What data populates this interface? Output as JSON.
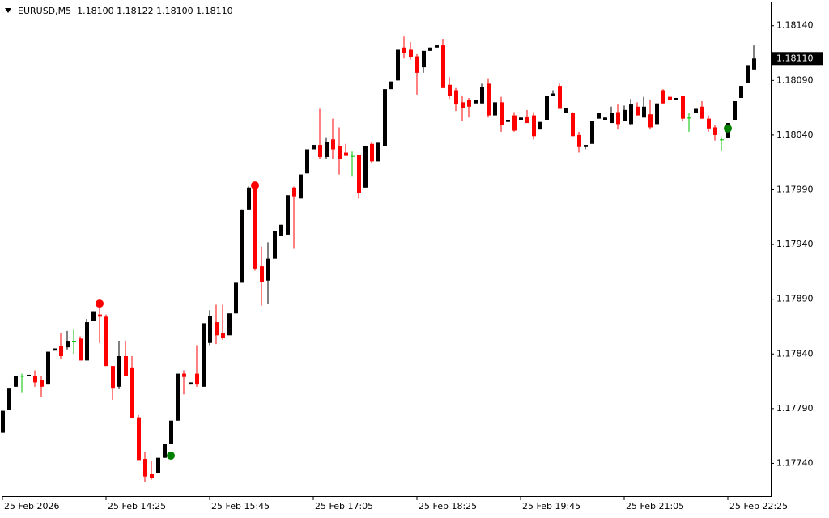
{
  "chart_data": {
    "type": "candlestick",
    "title": "EURUSD,M5  1.18100 1.18122 1.18100 1.18110",
    "categories": [
      "25 Feb 2026",
      null,
      null,
      null,
      null,
      null,
      null,
      null,
      null,
      null,
      null,
      null,
      null,
      null,
      null,
      null,
      "25 Feb 14:25",
      null,
      null,
      null,
      null,
      null,
      null,
      null,
      null,
      null,
      null,
      null,
      null,
      null,
      null,
      null,
      "25 Feb 15:45",
      null,
      null,
      null,
      null,
      null,
      null,
      null,
      null,
      null,
      null,
      null,
      null,
      null,
      null,
      null,
      "25 Feb 17:05",
      null,
      null,
      null,
      null,
      null,
      null,
      null,
      null,
      null,
      null,
      null,
      null,
      null,
      null,
      null,
      "25 Feb 18:25",
      null,
      null,
      null,
      null,
      null,
      null,
      null,
      null,
      null,
      null,
      null,
      null,
      null,
      null,
      null,
      "25 Feb 19:45",
      null,
      null,
      null,
      null,
      null,
      null,
      null,
      null,
      null,
      null,
      null,
      null,
      null,
      null,
      null,
      "25 Feb 21:05",
      null,
      null,
      null,
      null,
      null,
      null,
      null,
      null,
      null,
      null,
      null,
      null,
      null,
      null,
      null,
      "25 Feb 22:25",
      null,
      null,
      null,
      null
    ],
    "open": [
      1.17768,
      1.17789,
      1.1781,
      1.1782,
      1.1782,
      1.1782,
      1.17816,
      1.17812,
      1.17843,
      1.17847,
      1.17846,
      1.17852,
      1.17854,
      1.17834,
      1.1787,
      1.17876,
      1.17874,
      1.17829,
      1.1781,
      1.17838,
      1.17827,
      1.17782,
      1.17744,
      1.1773,
      1.17731,
      1.17745,
      1.17758,
      1.17779,
      1.17822,
      1.17812,
      1.17822,
      1.1781,
      1.1785,
      1.17869,
      1.17859,
      1.17857,
      1.17877,
      1.17905,
      1.17972,
      1.17992,
      1.1792,
      1.17907,
      1.17927,
      1.17948,
      1.17949,
      1.17992,
      1.17982,
      1.18005,
      1.18027,
      1.18031,
      1.1802,
      1.18036,
      1.1803,
      1.18024,
      1.18021,
      1.18022,
      1.17992,
      1.18032,
      1.18016,
      1.1803,
      1.18082,
      1.1809,
      1.1812,
      1.18118,
      1.18112,
      1.18102,
      1.18117,
      1.1812,
      1.18122,
      1.18086,
      1.18081,
      1.1807,
      1.18072,
      1.18069,
      1.18069,
      1.18087,
      1.18058,
      1.1807,
      1.18052,
      1.18058,
      1.18054,
      1.18057,
      1.18058,
      1.18045,
      1.18054,
      1.18076,
      1.18085,
      1.1806,
      1.1806,
      1.1804,
      1.18029,
      1.18032,
      1.18055,
      1.18054,
      1.18051,
      1.18061,
      1.18053,
      1.1805,
      1.18066,
      1.18056,
      1.18059,
      1.1805,
      1.18081,
      1.18075,
      1.18072,
      1.18076,
      1.18056,
      1.1806,
      1.18066,
      1.18055,
      1.18047,
      1.18036,
      1.18037,
      1.18054,
      1.18074,
      1.18088,
      1.181
    ],
    "high": [
      1.17788,
      1.17809,
      1.1782,
      1.17822,
      1.17821,
      1.17825,
      1.1782,
      1.17842,
      1.17845,
      1.17859,
      1.17861,
      1.17862,
      1.17856,
      1.17872,
      1.17879,
      1.17883,
      1.17876,
      1.17829,
      1.17852,
      1.17852,
      1.17838,
      1.17784,
      1.1775,
      1.17742,
      1.17745,
      1.17758,
      1.17779,
      1.17822,
      1.17825,
      1.17814,
      1.17848,
      1.17868,
      1.1788,
      1.17885,
      1.17885,
      1.17877,
      1.17905,
      1.17972,
      1.17993,
      1.17995,
      1.17938,
      1.17942,
      1.17952,
      1.17958,
      1.17985,
      1.17993,
      1.18004,
      1.18027,
      1.18031,
      1.18064,
      1.18038,
      1.18055,
      1.18047,
      1.18032,
      1.18025,
      1.18022,
      1.1803,
      1.18034,
      1.18033,
      1.18082,
      1.18089,
      1.18118,
      1.1813,
      1.18125,
      1.18114,
      1.18117,
      1.1812,
      1.18122,
      1.18128,
      1.18093,
      1.18083,
      1.18076,
      1.18074,
      1.18072,
      1.18087,
      1.18092,
      1.1807,
      1.18075,
      1.18054,
      1.18061,
      1.18056,
      1.18063,
      1.18061,
      1.18052,
      1.18076,
      1.18081,
      1.18087,
      1.18065,
      1.18061,
      1.18043,
      1.18031,
      1.18053,
      1.1806,
      1.18056,
      1.18066,
      1.18068,
      1.18067,
      1.18073,
      1.1807,
      1.18075,
      1.18072,
      1.18069,
      1.18082,
      1.18075,
      1.18074,
      1.18076,
      1.1806,
      1.18064,
      1.18071,
      1.18058,
      1.18049,
      1.18038,
      1.18051,
      1.18071,
      1.18085,
      1.18104,
      1.18122
    ],
    "low": [
      1.17768,
      1.17789,
      1.1781,
      1.17805,
      1.1782,
      1.1781,
      1.17801,
      1.17812,
      1.17843,
      1.17835,
      1.17844,
      1.1784,
      1.17834,
      1.17834,
      1.1787,
      1.1785,
      1.17829,
      1.17798,
      1.17808,
      1.1782,
      1.17781,
      1.17743,
      1.17723,
      1.17725,
      1.17731,
      1.17745,
      1.17758,
      1.17779,
      1.17803,
      1.17812,
      1.1781,
      1.1781,
      1.17848,
      1.17849,
      1.17853,
      1.17857,
      1.17877,
      1.17905,
      1.17972,
      1.17916,
      1.17884,
      1.17886,
      1.17927,
      1.17948,
      1.17949,
      1.17936,
      1.17982,
      1.18005,
      1.18027,
      1.18018,
      1.18018,
      1.18018,
      1.18004,
      1.18021,
      1.18002,
      1.17982,
      1.17992,
      1.18014,
      1.18016,
      1.1803,
      1.18082,
      1.1809,
      1.1811,
      1.18109,
      1.18077,
      1.18097,
      1.18117,
      1.1812,
      1.18083,
      1.18073,
      1.18062,
      1.18053,
      1.18056,
      1.18069,
      1.18069,
      1.18056,
      1.18058,
      1.18043,
      1.18052,
      1.18043,
      1.18054,
      1.18051,
      1.18036,
      1.18045,
      1.18054,
      1.18076,
      1.18064,
      1.1806,
      1.18039,
      1.18024,
      1.18027,
      1.18032,
      1.18055,
      1.18054,
      1.18051,
      1.18045,
      1.18053,
      1.18049,
      1.18058,
      1.18056,
      1.18045,
      1.1805,
      1.18069,
      1.18072,
      1.18072,
      1.18053,
      1.18043,
      1.1806,
      1.18055,
      1.18043,
      1.18035,
      1.18026,
      1.18037,
      1.18054,
      1.18074,
      1.18088,
      1.181
    ],
    "close": [
      1.17788,
      1.17809,
      1.1782,
      1.1782,
      1.17821,
      1.17814,
      1.1781,
      1.17842,
      1.17845,
      1.17838,
      1.17852,
      1.17852,
      1.17834,
      1.17869,
      1.17879,
      1.17874,
      1.17829,
      1.17809,
      1.17838,
      1.1782,
      1.17781,
      1.17743,
      1.17728,
      1.17727,
      1.17745,
      1.17758,
      1.17779,
      1.17822,
      1.17819,
      1.17814,
      1.17812,
      1.17868,
      1.17875,
      1.17857,
      1.17855,
      1.17877,
      1.17905,
      1.17972,
      1.17992,
      1.17918,
      1.17906,
      1.17927,
      1.17952,
      1.17958,
      1.17985,
      1.17984,
      1.18004,
      1.18027,
      1.18031,
      1.1802,
      1.18034,
      1.18027,
      1.18018,
      1.18021,
      1.18021,
      1.17987,
      1.1803,
      1.18016,
      1.18033,
      1.18082,
      1.18089,
      1.18118,
      1.18115,
      1.18111,
      1.18097,
      1.18117,
      1.1812,
      1.18122,
      1.18083,
      1.18076,
      1.18068,
      1.18065,
      1.18066,
      1.18072,
      1.18084,
      1.18058,
      1.1807,
      1.18049,
      1.18054,
      1.18044,
      1.18056,
      1.18051,
      1.18039,
      1.18052,
      1.18076,
      1.18078,
      1.18064,
      1.18065,
      1.18039,
      1.18029,
      1.18031,
      1.18053,
      1.1806,
      1.18056,
      1.1806,
      1.1805,
      1.18063,
      1.18068,
      1.18058,
      1.18066,
      1.18047,
      1.18069,
      1.18069,
      1.18072,
      1.18074,
      1.18055,
      1.18056,
      1.18064,
      1.18055,
      1.18046,
      1.1804,
      1.18036,
      1.18051,
      1.18071,
      1.18085,
      1.18104,
      1.1811
    ],
    "up_color": "#000000",
    "down_color": "#ff0000",
    "doji_color": "#00c000",
    "sell_signals": {
      "color": "#ff0000",
      "indices": [
        15,
        39
      ],
      "prices": [
        1.17886,
        1.17994
      ]
    },
    "buy_signals": {
      "color": "#008000",
      "indices": [
        26,
        112
      ],
      "prices": [
        1.17747,
        1.18046
      ]
    },
    "current_price": {
      "value": 1.1811,
      "label": "1.18110"
    },
    "ylim": [
      1.1771,
      1.18162
    ],
    "yticks": [
      {
        "value": 1.1814,
        "label": "1.18140"
      },
      {
        "value": 1.1809,
        "label": "1.18090"
      },
      {
        "value": 1.1804,
        "label": "1.18040"
      },
      {
        "value": 1.1799,
        "label": "1.17990"
      },
      {
        "value": 1.1794,
        "label": "1.17940"
      },
      {
        "value": 1.1789,
        "label": "1.17890"
      },
      {
        "value": 1.1784,
        "label": "1.17840"
      },
      {
        "value": 1.1779,
        "label": "1.17790"
      },
      {
        "value": 1.1774,
        "label": "1.17740"
      }
    ]
  }
}
